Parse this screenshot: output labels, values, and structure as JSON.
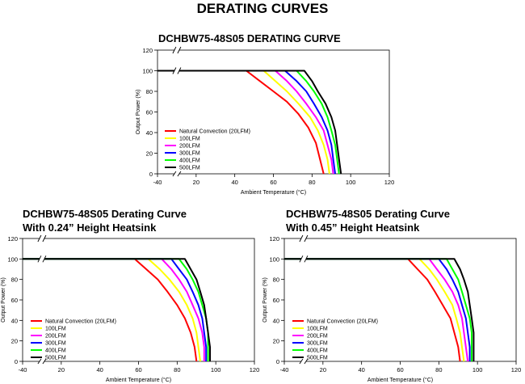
{
  "page_title": "DERATING CURVES",
  "chart_data": [
    {
      "type": "line",
      "title": "DCHBW75-48S05 DERATING CURVE",
      "xlabel": "Ambient Temperature (°C)",
      "ylabel": "Output Power (%)",
      "xlim": [
        -40,
        120
      ],
      "ylim": [
        0,
        120
      ],
      "x_ticks": [
        "-40",
        "20",
        "40",
        "60",
        "80",
        "100",
        "120"
      ],
      "y_ticks": [
        "0",
        "20",
        "40",
        "60",
        "80",
        "100",
        "120"
      ],
      "axis_break": true,
      "grid": false,
      "legend_position": "bottom-left",
      "series": [
        {
          "name": "Natural Convection (20LFM)",
          "color": "#ff0000",
          "x": [
            -40,
            46,
            53,
            60,
            67,
            73,
            78,
            82,
            84,
            86
          ],
          "y": [
            100,
            100,
            90,
            80,
            70,
            58,
            45,
            30,
            15,
            0
          ]
        },
        {
          "name": "100LFM",
          "color": "#ffff00",
          "x": [
            -40,
            55,
            61,
            67,
            73,
            79,
            83,
            86,
            88,
            89
          ],
          "y": [
            100,
            100,
            90,
            80,
            68,
            55,
            42,
            28,
            14,
            0
          ]
        },
        {
          "name": "200LFM",
          "color": "#ff00ff",
          "x": [
            -40,
            61,
            67,
            72,
            77,
            82,
            86,
            88,
            90,
            91
          ],
          "y": [
            100,
            100,
            90,
            80,
            68,
            55,
            42,
            28,
            14,
            0
          ]
        },
        {
          "name": "300LFM",
          "color": "#0000ff",
          "x": [
            -40,
            66,
            72,
            77,
            81,
            85,
            88,
            90,
            91,
            92
          ],
          "y": [
            100,
            100,
            90,
            80,
            68,
            55,
            42,
            28,
            14,
            0
          ]
        },
        {
          "name": "400LFM",
          "color": "#00ff00",
          "x": [
            -40,
            72,
            77,
            81,
            85,
            88,
            90,
            92,
            93,
            94
          ],
          "y": [
            100,
            100,
            90,
            80,
            68,
            55,
            42,
            28,
            14,
            0
          ]
        },
        {
          "name": "500LFM",
          "color": "#000000",
          "x": [
            -40,
            76,
            80,
            83,
            87,
            90,
            92,
            93,
            94,
            95
          ],
          "y": [
            100,
            100,
            90,
            80,
            68,
            55,
            42,
            28,
            14,
            0
          ]
        }
      ]
    },
    {
      "type": "line",
      "title": "DCHBW75-48S05 Derating Curve\nWith 0.24” Height Heatsink",
      "xlabel": "Ambient Temperature (°C)",
      "ylabel": "Output Power (%)",
      "xlim": [
        -40,
        120
      ],
      "ylim": [
        0,
        120
      ],
      "x_ticks": [
        "-40",
        "20",
        "40",
        "60",
        "80",
        "100",
        "120"
      ],
      "y_ticks": [
        "0",
        "20",
        "40",
        "60",
        "80",
        "100",
        "120"
      ],
      "axis_break": true,
      "grid": false,
      "legend_position": "bottom-left",
      "series": [
        {
          "name": "Natural Convection (20LFM)",
          "color": "#ff0000",
          "x": [
            -40,
            58,
            64,
            70,
            75,
            80,
            84,
            87,
            89,
            90
          ],
          "y": [
            100,
            100,
            90,
            80,
            68,
            55,
            42,
            28,
            14,
            0
          ]
        },
        {
          "name": "100LFM",
          "color": "#ffff00",
          "x": [
            -40,
            65,
            71,
            76,
            81,
            85,
            88,
            90,
            91,
            92
          ],
          "y": [
            100,
            100,
            90,
            80,
            68,
            55,
            42,
            28,
            14,
            0
          ]
        },
        {
          "name": "200LFM",
          "color": "#ff00ff",
          "x": [
            -40,
            72,
            77,
            81,
            85,
            88,
            91,
            93,
            94,
            94
          ],
          "y": [
            100,
            100,
            90,
            80,
            68,
            55,
            42,
            28,
            14,
            0
          ]
        },
        {
          "name": "300LFM",
          "color": "#0000ff",
          "x": [
            -40,
            77,
            81,
            85,
            88,
            91,
            93,
            94,
            95,
            95
          ],
          "y": [
            100,
            100,
            90,
            80,
            68,
            55,
            42,
            28,
            14,
            0
          ]
        },
        {
          "name": "400LFM",
          "color": "#00ff00",
          "x": [
            -40,
            81,
            85,
            88,
            91,
            93,
            95,
            96,
            96,
            96
          ],
          "y": [
            100,
            100,
            90,
            80,
            68,
            55,
            42,
            28,
            14,
            0
          ]
        },
        {
          "name": "500LFM",
          "color": "#000000",
          "x": [
            -40,
            84,
            87,
            90,
            92,
            94,
            95,
            96,
            97,
            97
          ],
          "y": [
            100,
            100,
            90,
            80,
            68,
            55,
            42,
            28,
            14,
            0
          ]
        }
      ]
    },
    {
      "type": "line",
      "title": "DCHBW75-48S05 Derating Curve\nWith 0.45” Height Heatsink",
      "xlabel": "Ambient Temperature (°C)",
      "ylabel": "Output Power (%)",
      "xlim": [
        -40,
        120
      ],
      "ylim": [
        0,
        120
      ],
      "x_ticks": [
        "-40",
        "20",
        "40",
        "60",
        "80",
        "100",
        "120"
      ],
      "y_ticks": [
        "0",
        "20",
        "40",
        "60",
        "80",
        "100",
        "120"
      ],
      "axis_break": true,
      "grid": false,
      "legend_position": "bottom-left",
      "series": [
        {
          "name": "Natural Convection (20LFM)",
          "color": "#ff0000",
          "x": [
            -40,
            64,
            69,
            74,
            78,
            82,
            86,
            88,
            90,
            91
          ],
          "y": [
            100,
            100,
            90,
            80,
            68,
            55,
            42,
            28,
            14,
            0
          ]
        },
        {
          "name": "100LFM",
          "color": "#ffff00",
          "x": [
            -40,
            70,
            75,
            79,
            83,
            87,
            89,
            91,
            92,
            93
          ],
          "y": [
            100,
            100,
            90,
            80,
            68,
            55,
            42,
            28,
            14,
            0
          ]
        },
        {
          "name": "200LFM",
          "color": "#ff00ff",
          "x": [
            -40,
            75,
            79,
            83,
            87,
            90,
            92,
            93,
            94,
            95
          ],
          "y": [
            100,
            100,
            90,
            80,
            68,
            55,
            42,
            28,
            14,
            0
          ]
        },
        {
          "name": "300LFM",
          "color": "#0000ff",
          "x": [
            -40,
            80,
            84,
            87,
            90,
            92,
            94,
            95,
            96,
            96
          ],
          "y": [
            100,
            100,
            90,
            80,
            68,
            55,
            42,
            28,
            14,
            0
          ]
        },
        {
          "name": "400LFM",
          "color": "#00ff00",
          "x": [
            -40,
            84,
            87,
            90,
            92,
            94,
            96,
            97,
            97,
            97
          ],
          "y": [
            100,
            100,
            90,
            80,
            68,
            55,
            42,
            28,
            14,
            0
          ]
        },
        {
          "name": "500LFM",
          "color": "#000000",
          "x": [
            -40,
            88,
            91,
            93,
            95,
            96,
            97,
            98,
            98,
            98
          ],
          "y": [
            100,
            100,
            90,
            80,
            68,
            55,
            42,
            28,
            14,
            0
          ]
        }
      ]
    }
  ]
}
